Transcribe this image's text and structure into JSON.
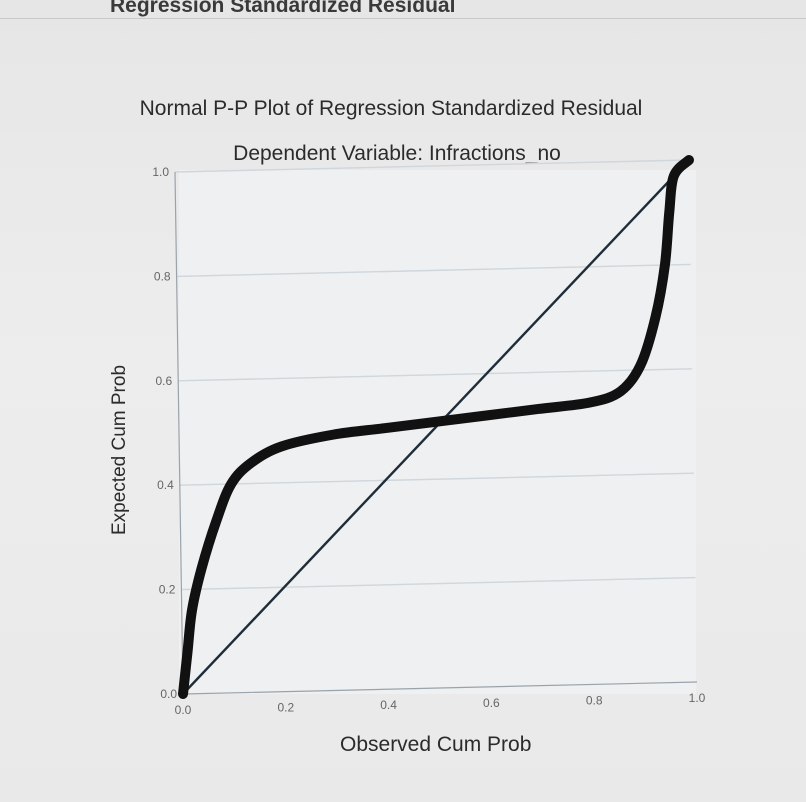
{
  "window": {
    "caption": "Regression Standardized Residual"
  },
  "chart_data": {
    "type": "line",
    "title": "Normal P-P Plot of Regression Standardized Residual",
    "subtitle": "Dependent Variable: Infractions_no",
    "xlabel": "Observed Cum Prob",
    "ylabel": "Expected Cum Prob",
    "xlim": [
      0,
      1
    ],
    "ylim": [
      0,
      1
    ],
    "x_ticks": [
      "0.0",
      "0.2",
      "0.4",
      "0.6",
      "0.8",
      "1.0"
    ],
    "y_ticks": [
      "0.0",
      "0.2",
      "0.4",
      "0.6",
      "0.8",
      "1.0"
    ],
    "grid": "horizontal",
    "legend": "none",
    "colors": {
      "curve": "#111111",
      "reference": "#1f2d3a",
      "grid": "#cfd6dc",
      "axis": "#9aa3ab"
    },
    "series": [
      {
        "values": [
          [
            0.0,
            0.0
          ],
          [
            0.01,
            0.08
          ],
          [
            0.02,
            0.16
          ],
          [
            0.04,
            0.24
          ],
          [
            0.07,
            0.33
          ],
          [
            0.1,
            0.4
          ],
          [
            0.14,
            0.44
          ],
          [
            0.2,
            0.47
          ],
          [
            0.3,
            0.49
          ],
          [
            0.4,
            0.5
          ],
          [
            0.5,
            0.51
          ],
          [
            0.6,
            0.52
          ],
          [
            0.7,
            0.53
          ],
          [
            0.8,
            0.54
          ],
          [
            0.86,
            0.56
          ],
          [
            0.9,
            0.61
          ],
          [
            0.93,
            0.7
          ],
          [
            0.95,
            0.8
          ],
          [
            0.96,
            0.9
          ],
          [
            0.97,
            0.97
          ],
          [
            1.0,
            1.0
          ]
        ]
      },
      {
        "values": [
          [
            0.0,
            0.0
          ],
          [
            1.0,
            1.0
          ]
        ]
      }
    ]
  }
}
